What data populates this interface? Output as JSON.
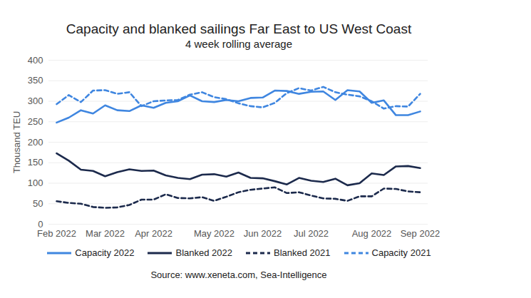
{
  "chart_data": {
    "type": "line",
    "title": "Capacity and blanked sailings Far East to US West Coast",
    "subtitle": "4 week rolling average",
    "y_label": "Thousand TEU",
    "source": "Source: www.xeneta.com, Sea-Intelligence",
    "categories": [
      "Feb 2022",
      null,
      null,
      null,
      "Mar 2022",
      null,
      null,
      null,
      "Apr 2022",
      null,
      null,
      null,
      null,
      "May 2022",
      null,
      null,
      null,
      "Jun 2022",
      null,
      null,
      null,
      "Jul 2022",
      null,
      null,
      null,
      null,
      "Aug 2022",
      null,
      null,
      null,
      "Sep 2022"
    ],
    "series": [
      {
        "name": "Capacity 2022",
        "color": "#3f86e0",
        "line_style": "solid",
        "values": [
          248,
          260,
          278,
          270,
          290,
          278,
          276,
          290,
          284,
          296,
          300,
          314,
          300,
          298,
          303,
          300,
          308,
          309,
          326,
          325,
          318,
          323,
          324,
          303,
          327,
          324,
          296,
          302,
          266,
          266,
          275
        ]
      },
      {
        "name": "Blanked 2022",
        "color": "#1c2a4c",
        "line_style": "solid",
        "values": [
          173,
          155,
          133,
          130,
          117,
          127,
          134,
          130,
          131,
          119,
          113,
          110,
          121,
          122,
          116,
          126,
          113,
          112,
          105,
          97,
          113,
          106,
          103,
          111,
          95,
          100,
          124,
          120,
          141,
          142,
          137
        ]
      },
      {
        "name": "Blanked 2021",
        "color": "#1c2a4c",
        "line_style": "dashed",
        "values": [
          56,
          52,
          50,
          42,
          40,
          41,
          47,
          60,
          60,
          73,
          64,
          63,
          66,
          57,
          67,
          78,
          84,
          87,
          90,
          76,
          78,
          70,
          63,
          62,
          57,
          68,
          68,
          87,
          86,
          80,
          78
        ]
      },
      {
        "name": "Capacity 2021",
        "color": "#3f86e0",
        "line_style": "dashed",
        "values": [
          293,
          315,
          298,
          326,
          327,
          318,
          322,
          288,
          300,
          302,
          303,
          316,
          322,
          310,
          305,
          295,
          288,
          285,
          296,
          320,
          332,
          326,
          335,
          322,
          316,
          312,
          300,
          282,
          288,
          287,
          318
        ]
      }
    ],
    "ylim": [
      0,
      400
    ],
    "yticks": [
      0,
      50,
      100,
      150,
      200,
      250,
      300,
      350,
      400
    ],
    "grid": true,
    "legend": "bottom"
  }
}
